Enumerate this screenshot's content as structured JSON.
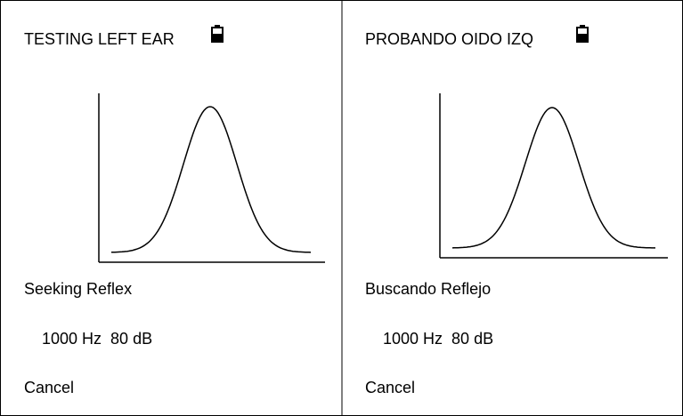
{
  "panels": [
    {
      "title": "TESTING LEFT EAR",
      "status": "Seeking Reflex",
      "tone": "1000 Hz  80 dB",
      "action": "Cancel"
    },
    {
      "title": "PROBANDO OIDO IZQ",
      "status": "Buscando Reflejo",
      "tone": "1000 Hz  80 dB",
      "action": "Cancel"
    }
  ]
}
